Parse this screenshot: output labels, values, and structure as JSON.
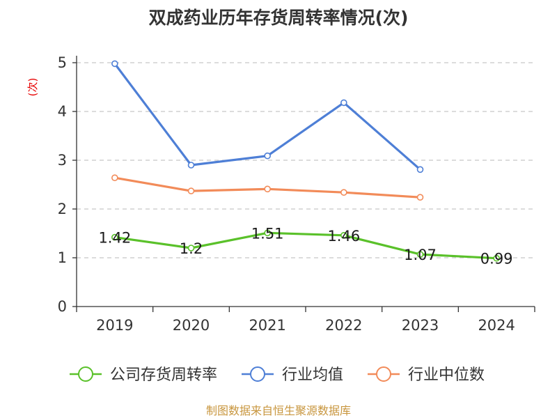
{
  "chart_data": {
    "type": "line",
    "title": "双成药业历年存货周转率情况(次)",
    "ylabel": "(次)",
    "xlabel": "",
    "categories": [
      "2019",
      "2020",
      "2021",
      "2022",
      "2023",
      "2024"
    ],
    "ylim": [
      0,
      5
    ],
    "yticks": [
      0,
      1,
      2,
      3,
      4,
      5
    ],
    "grid": true,
    "legend_position": "bottom",
    "series": [
      {
        "name": "公司存货周转率",
        "color": "#5ac12a",
        "values": [
          1.42,
          1.2,
          1.51,
          1.46,
          1.07,
          0.99
        ],
        "labels": [
          "1.42",
          "1.2",
          "1.51",
          "1.46",
          "1.07",
          "0.99"
        ]
      },
      {
        "name": "行业均值",
        "color": "#4e7fd6",
        "values": [
          4.98,
          2.9,
          3.09,
          4.18,
          2.81,
          null
        ]
      },
      {
        "name": "行业中位数",
        "color": "#f28b59",
        "values": [
          2.64,
          2.37,
          2.41,
          2.34,
          2.24,
          null
        ]
      }
    ],
    "source": "制图数据来自恒生聚源数据库"
  }
}
